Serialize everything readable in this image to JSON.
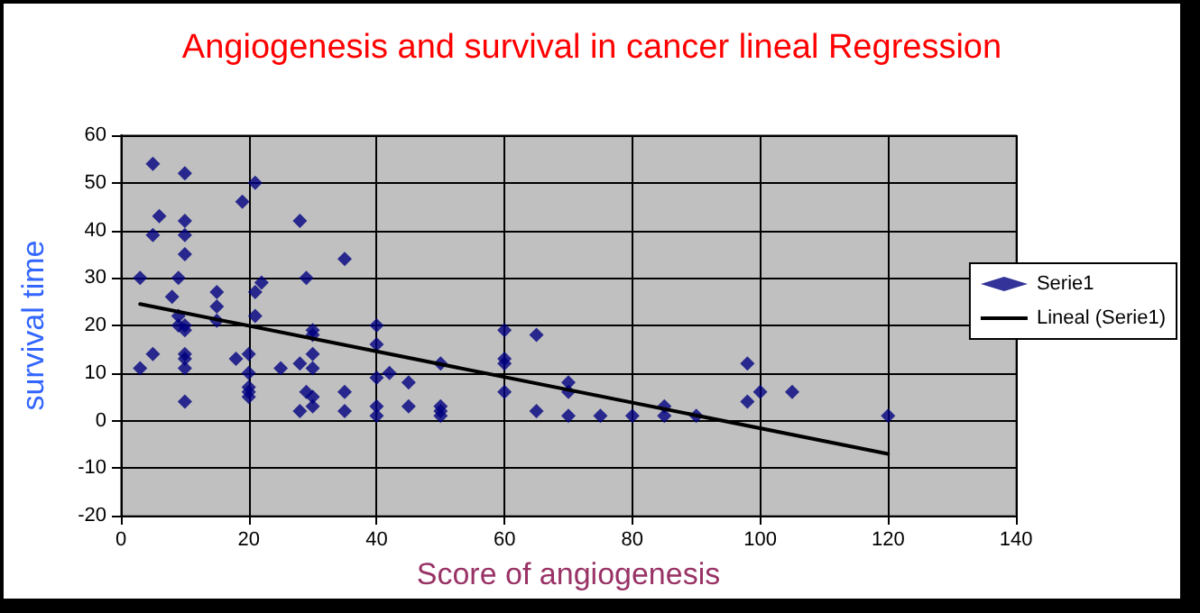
{
  "chart_data": {
    "type": "scatter",
    "title": "Angiogenesis and survival in cancer lineal Regression",
    "xlabel": "Score of angiogenesis",
    "ylabel": "survival time",
    "xlim": [
      0,
      140
    ],
    "xticks": [
      0,
      20,
      40,
      60,
      80,
      100,
      120,
      140
    ],
    "ylim": [
      -20,
      60
    ],
    "yticks": [
      -20,
      -10,
      0,
      10,
      20,
      30,
      40,
      50,
      60
    ],
    "grid": true,
    "legend": "right",
    "marker": "diamond",
    "series": [
      {
        "name": "Serie1",
        "color": "#000080",
        "x": [
          3,
          3,
          5,
          5,
          5,
          6,
          8,
          9,
          9,
          9,
          10,
          10,
          10,
          10,
          10,
          10,
          10,
          10,
          10,
          10,
          15,
          15,
          15,
          18,
          19,
          20,
          20,
          20,
          20,
          20,
          21,
          21,
          21,
          22,
          25,
          28,
          28,
          28,
          29,
          29,
          30,
          30,
          30,
          30,
          30,
          30,
          35,
          35,
          35,
          40,
          40,
          40,
          40,
          40,
          42,
          45,
          45,
          50,
          50,
          50,
          50,
          60,
          60,
          60,
          60,
          65,
          65,
          70,
          70,
          70,
          75,
          80,
          85,
          85,
          90,
          98,
          98,
          100,
          105,
          120
        ],
        "values": [
          30,
          11,
          54,
          39,
          14,
          43,
          26,
          30,
          22,
          20,
          52,
          42,
          39,
          35,
          20,
          19,
          14,
          13,
          11,
          4,
          27,
          24,
          21,
          13,
          46,
          14,
          10,
          7,
          6,
          5,
          50,
          27,
          22,
          29,
          11,
          42,
          12,
          2,
          30,
          6,
          19,
          18,
          14,
          11,
          5,
          3,
          34,
          6,
          2,
          20,
          16,
          9,
          3,
          1,
          10,
          8,
          3,
          12,
          3,
          2,
          1,
          19,
          13,
          12,
          6,
          18,
          2,
          8,
          6,
          1,
          1,
          1,
          3,
          1,
          1,
          12,
          4,
          6,
          6,
          1
        ]
      },
      {
        "name": "Lineal (Serie1)",
        "type": "line",
        "color": "#000000",
        "marker": "none",
        "line_style": "solid",
        "x": [
          3,
          120
        ],
        "values": [
          24.5,
          -7
        ]
      }
    ]
  }
}
